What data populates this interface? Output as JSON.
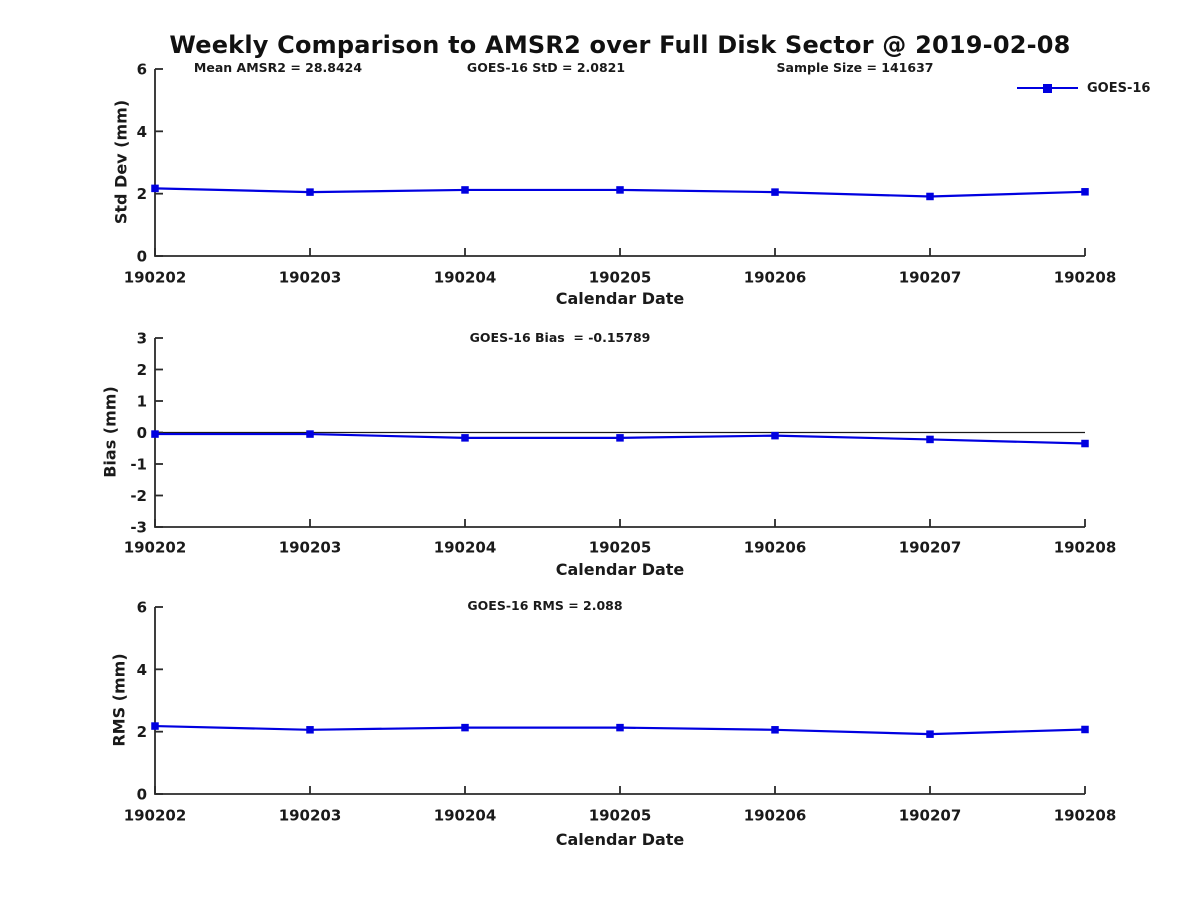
{
  "page": {
    "title": "Weekly Comparison to AMSR2 over Full Disk Sector @ 2019-02-08",
    "background": "#ffffff"
  },
  "legend": {
    "label": "GOES-16",
    "position": "top-right-inside-first-panel"
  },
  "colors": {
    "series": "#0000e0",
    "axis": "#2a2a2a",
    "zero_line": "#1a1a1a",
    "text": "#1a1a1a"
  },
  "chart_data": [
    {
      "type": "line",
      "name": "std-dev-panel",
      "annotations": [
        "Mean AMSR2 = 28.8424",
        "GOES-16 StD = 2.0821",
        "Sample Size = 141637"
      ],
      "categories": [
        "190202",
        "190203",
        "190204",
        "190205",
        "190206",
        "190207",
        "190208"
      ],
      "series": [
        {
          "name": "GOES-16",
          "values": [
            2.17,
            2.05,
            2.12,
            2.12,
            2.05,
            1.91,
            2.06
          ]
        }
      ],
      "xlabel": "Calendar Date",
      "ylabel": "Std Dev (mm)",
      "ylim": [
        0,
        6
      ],
      "yticks": [
        0,
        2,
        4,
        6
      ],
      "grid": false,
      "zero_line": false
    },
    {
      "type": "line",
      "name": "bias-panel",
      "title": "GOES-16 Bias  = -0.15789",
      "categories": [
        "190202",
        "190203",
        "190204",
        "190205",
        "190206",
        "190207",
        "190208"
      ],
      "series": [
        {
          "name": "GOES-16",
          "values": [
            -0.05,
            -0.05,
            -0.17,
            -0.17,
            -0.1,
            -0.22,
            -0.35
          ]
        }
      ],
      "xlabel": "Calendar Date",
      "ylabel": "Bias (mm)",
      "ylim": [
        -3,
        3
      ],
      "yticks": [
        -3,
        -2,
        -1,
        0,
        1,
        2,
        3
      ],
      "grid": false,
      "zero_line": true
    },
    {
      "type": "line",
      "name": "rms-panel",
      "title": "GOES-16 RMS = 2.088",
      "categories": [
        "190202",
        "190203",
        "190204",
        "190205",
        "190206",
        "190207",
        "190208"
      ],
      "series": [
        {
          "name": "GOES-16",
          "values": [
            2.18,
            2.06,
            2.13,
            2.13,
            2.06,
            1.92,
            2.07
          ]
        }
      ],
      "xlabel": "Calendar Date",
      "ylabel": "RMS (mm)",
      "ylim": [
        0,
        6
      ],
      "yticks": [
        0,
        2,
        4,
        6
      ],
      "grid": false,
      "zero_line": false
    }
  ]
}
